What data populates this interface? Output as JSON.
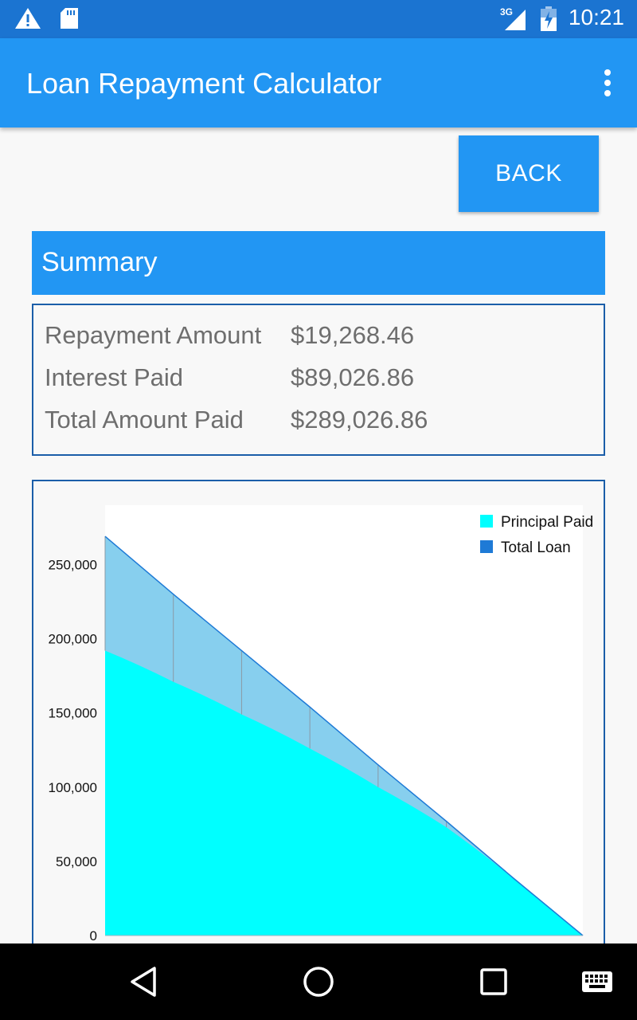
{
  "status_bar": {
    "time": "10:21",
    "network": "3G",
    "icons": [
      "warning-icon",
      "sd-card-icon",
      "signal-icon",
      "battery-icon"
    ]
  },
  "app_bar": {
    "title": "Loan Repayment Calculator",
    "menu_icon": "overflow-menu-icon",
    "color": "#2296f3"
  },
  "back_button": {
    "label": "BACK"
  },
  "summary": {
    "title": "Summary",
    "rows": [
      {
        "label": "Repayment Amount",
        "value": "$19,268.46"
      },
      {
        "label": "Interest Paid",
        "value": "$89,026.86"
      },
      {
        "label": "Total Amount Paid",
        "value": "$289,026.86"
      }
    ]
  },
  "chart_data": {
    "type": "area",
    "y_ticks": [
      "0",
      "50,000",
      "100,000",
      "150,000",
      "200,000",
      "250,000"
    ],
    "ylim": [
      0,
      290000
    ],
    "x": [
      0,
      1,
      2,
      3,
      4,
      5,
      6,
      7
    ],
    "series": [
      {
        "name": "Principal Paid",
        "color": "#00ffff",
        "values": [
          192000,
          171000,
          149000,
          126000,
          100000,
          73000,
          38000,
          0
        ]
      },
      {
        "name": "Total Loan",
        "color": "#1e7ad6",
        "values": [
          269000,
          230000,
          192000,
          154000,
          115000,
          77000,
          38000,
          0
        ]
      }
    ],
    "legend_position": "top-right",
    "grid": false
  },
  "nav_bar": {
    "icons": [
      "back-triangle-icon",
      "home-circle-icon",
      "recents-square-icon",
      "keyboard-icon"
    ]
  }
}
